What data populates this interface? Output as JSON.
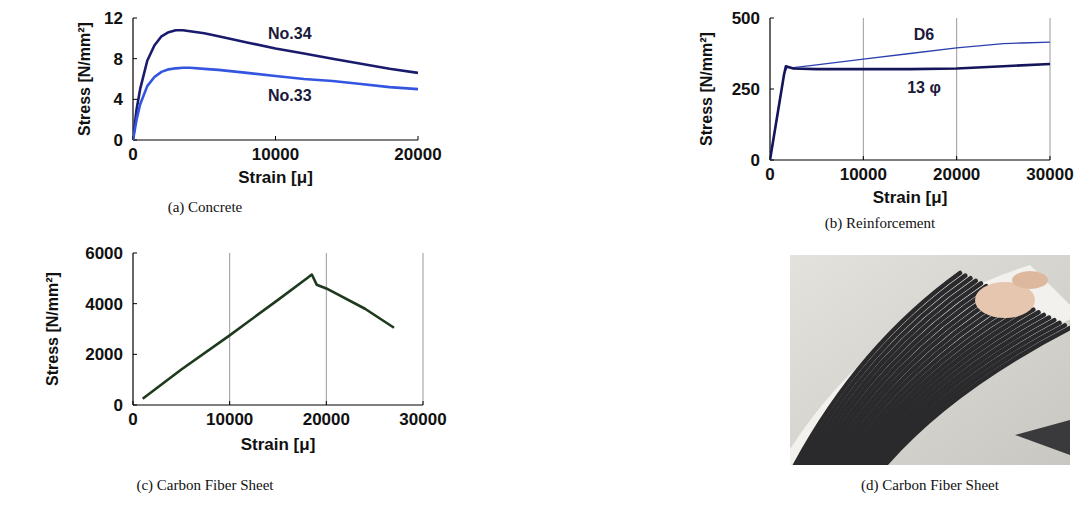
{
  "chart_data": [
    {
      "type": "line",
      "title": "(a) Concrete",
      "x_label": "Strain [μ]",
      "y_label": "Stress [N/mm²]",
      "xlim": [
        0,
        20000
      ],
      "xticks": [
        0,
        10000,
        20000
      ],
      "ylim": [
        0,
        12
      ],
      "yticks": [
        0,
        4,
        8,
        12
      ],
      "grid": false,
      "series": [
        {
          "name": "No.34",
          "color": "#1b1b6e",
          "x": [
            0,
            250,
            500,
            1000,
            1500,
            2000,
            2500,
            3000,
            3500,
            4000,
            5000,
            6000,
            8000,
            10000,
            12000,
            14000,
            16000,
            18000,
            20000
          ],
          "values": [
            0,
            3,
            5,
            7.8,
            9.3,
            10.2,
            10.6,
            10.8,
            10.8,
            10.7,
            10.5,
            10.2,
            9.6,
            9.0,
            8.5,
            8.0,
            7.5,
            7.0,
            6.6
          ]
        },
        {
          "name": "No.33",
          "color": "#3355e0",
          "x": [
            0,
            250,
            500,
            1000,
            1500,
            2000,
            2500,
            3000,
            3500,
            4000,
            5000,
            6000,
            8000,
            10000,
            12000,
            14000,
            16000,
            18000,
            20000
          ],
          "values": [
            0,
            2,
            3.5,
            5.3,
            6.2,
            6.7,
            6.95,
            7.05,
            7.1,
            7.1,
            7.0,
            6.9,
            6.6,
            6.3,
            6.0,
            5.8,
            5.5,
            5.2,
            5.0
          ]
        }
      ]
    },
    {
      "type": "line",
      "title": "(b) Reinforcement",
      "x_label": "Strain [μ]",
      "y_label": "Stress [N/mm²]",
      "xlim": [
        0,
        30000
      ],
      "xticks": [
        0,
        10000,
        20000,
        30000
      ],
      "ylim": [
        0,
        500
      ],
      "yticks": [
        0,
        250,
        500
      ],
      "grid": true,
      "series": [
        {
          "name": "D6",
          "color": "#2b3fb0",
          "x": [
            0,
            1500,
            1800,
            2500,
            5000,
            10000,
            15000,
            20000,
            25000,
            27000,
            30000
          ],
          "values": [
            0,
            300,
            325,
            325,
            335,
            355,
            375,
            395,
            410,
            412,
            415
          ]
        },
        {
          "name": "13 φ",
          "color": "#15155a",
          "x": [
            0,
            1500,
            1700,
            2500,
            5000,
            10000,
            15000,
            20000,
            25000,
            30000
          ],
          "values": [
            0,
            300,
            330,
            322,
            320,
            320,
            320,
            322,
            330,
            338
          ]
        }
      ]
    },
    {
      "type": "line",
      "title": "(c) Carbon Fiber Sheet",
      "x_label": "Strain [μ]",
      "y_label": "Stress [N/mm²]",
      "xlim": [
        0,
        30000
      ],
      "xticks": [
        0,
        10000,
        20000,
        30000
      ],
      "ylim": [
        0,
        6000
      ],
      "yticks": [
        0,
        2000,
        4000,
        6000
      ],
      "grid": true,
      "series": [
        {
          "name": "Carbon Fiber Sheet",
          "color": "#1d3a1d",
          "x": [
            1000,
            5000,
            10000,
            15000,
            18000,
            18500,
            19000,
            20000,
            24000,
            27000
          ],
          "values": [
            250,
            1400,
            2750,
            4150,
            5000,
            5150,
            4750,
            4600,
            3800,
            3050
          ]
        }
      ]
    }
  ],
  "photo": {
    "caption": "(d) Carbon Fiber Sheet"
  }
}
